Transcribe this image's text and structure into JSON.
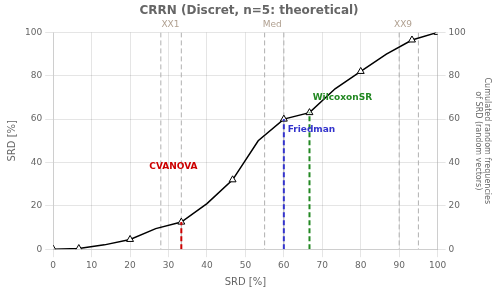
{
  "chart_data": {
    "type": "line",
    "title": "CRRN (Discret, n=5: theoretical)",
    "xlabel": "SRD [%]",
    "ylabel": "SRD [%]",
    "y2label": "Cumulated random frequencies\nof SRD (random vectors)",
    "xlim": [
      0,
      100
    ],
    "xticks": [
      0,
      10,
      20,
      30,
      40,
      50,
      60,
      70,
      80,
      90,
      100
    ],
    "ylim": [
      0,
      100
    ],
    "yticks": [
      0,
      20,
      40,
      60,
      80,
      100
    ],
    "y2lim": [
      0,
      100
    ],
    "y2ticks": [
      0,
      20,
      40,
      60,
      80,
      100
    ],
    "grid": true,
    "series": [
      {
        "x": [
          0,
          0,
          6.67,
          13.33,
          20,
          26.67,
          33.33,
          40,
          46.67,
          53.33,
          60,
          66.67,
          73.33,
          80,
          86.67,
          93.33,
          100,
          100
        ],
        "values": [
          0,
          0,
          0.3,
          2.0,
          4.5,
          9.5,
          12.5,
          21.0,
          32.0,
          50.0,
          60.0,
          63.0,
          74.0,
          82.0,
          90.0,
          96.5,
          100,
          100
        ],
        "color": "#000000",
        "line_style": "solid",
        "marker": "none"
      },
      {
        "x": [
          0,
          6.67,
          20,
          33.33,
          46.67,
          60,
          66.67,
          80,
          93.33,
          100
        ],
        "values": [
          0,
          0.3,
          4.5,
          12.5,
          32.0,
          60.0,
          63.0,
          82.0,
          96.5,
          100
        ],
        "color": "#000000",
        "line_style": "none",
        "marker": "triangle"
      }
    ],
    "annotations": [
      {
        "x": [
          28,
          33.33
        ],
        "color": "#b0b0b0",
        "line_style": "dashed",
        "text": "XX1",
        "text_x": 30.5,
        "text_y": 101.5,
        "text_color": "#b0a090"
      },
      {
        "x": [
          55,
          60
        ],
        "color": "#b0b0b0",
        "line_style": "dashed",
        "text": "Med",
        "text_x": 57,
        "text_y": 101.5,
        "text_color": "#b0a090"
      },
      {
        "x": [
          90,
          95
        ],
        "color": "#b0b0b0",
        "line_style": "dashed",
        "text": "XX9",
        "text_x": 91,
        "text_y": 101.5,
        "text_color": "#b0a090"
      },
      {
        "x": [
          33.33
        ],
        "y": [
          0,
          12.5
        ],
        "color": "#cc0000",
        "line_style": "dashed",
        "text": "CVANOVA",
        "text_x": 25,
        "text_y": 38,
        "text_color": "#cc0000"
      },
      {
        "x": [
          60
        ],
        "y": [
          0,
          60.0
        ],
        "color": "#3333cc",
        "line_style": "dashed",
        "text": "Friedman",
        "text_x": 61,
        "text_y": 55,
        "text_color": "#3333cc"
      },
      {
        "x": [
          66.67
        ],
        "y": [
          0,
          63.0
        ],
        "color": "#228822",
        "line_style": "dashed",
        "text": "WilcoxonSR",
        "text_x": 67.5,
        "text_y": 70,
        "text_color": "#228822"
      }
    ]
  }
}
